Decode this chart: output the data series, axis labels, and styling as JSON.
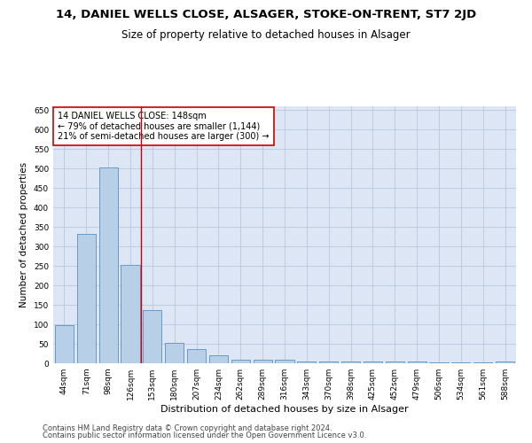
{
  "title": "14, DANIEL WELLS CLOSE, ALSAGER, STOKE-ON-TRENT, ST7 2JD",
  "subtitle": "Size of property relative to detached houses in Alsager",
  "xlabel": "Distribution of detached houses by size in Alsager",
  "ylabel": "Number of detached properties",
  "bar_labels": [
    "44sqm",
    "71sqm",
    "98sqm",
    "126sqm",
    "153sqm",
    "180sqm",
    "207sqm",
    "234sqm",
    "262sqm",
    "289sqm",
    "316sqm",
    "343sqm",
    "370sqm",
    "398sqm",
    "425sqm",
    "452sqm",
    "479sqm",
    "506sqm",
    "534sqm",
    "561sqm",
    "588sqm"
  ],
  "bar_values": [
    97,
    333,
    504,
    253,
    137,
    53,
    36,
    20,
    10,
    10,
    10,
    5,
    5,
    5,
    5,
    5,
    5,
    2,
    2,
    2,
    5
  ],
  "bar_color": "#b8cfe8",
  "bar_edge_color": "#5a8fc0",
  "ax_facecolor": "#dce6f4",
  "background_color": "#ffffff",
  "grid_color": "#b8c8dc",
  "annotation_line1": "14 DANIEL WELLS CLOSE: 148sqm",
  "annotation_line2": "← 79% of detached houses are smaller (1,144)",
  "annotation_line3": "21% of semi-detached houses are larger (300) →",
  "vline_x_index": 3.47,
  "vline_color": "#cc0000",
  "annotation_box_edge_color": "#cc0000",
  "ylim": [
    0,
    660
  ],
  "yticks": [
    0,
    50,
    100,
    150,
    200,
    250,
    300,
    350,
    400,
    450,
    500,
    550,
    600,
    650
  ],
  "footer_line1": "Contains HM Land Registry data © Crown copyright and database right 2024.",
  "footer_line2": "Contains public sector information licensed under the Open Government Licence v3.0.",
  "title_fontsize": 9.5,
  "subtitle_fontsize": 8.5,
  "xlabel_fontsize": 8,
  "ylabel_fontsize": 7.5,
  "tick_fontsize": 6.5,
  "annotation_fontsize": 7,
  "footer_fontsize": 6
}
